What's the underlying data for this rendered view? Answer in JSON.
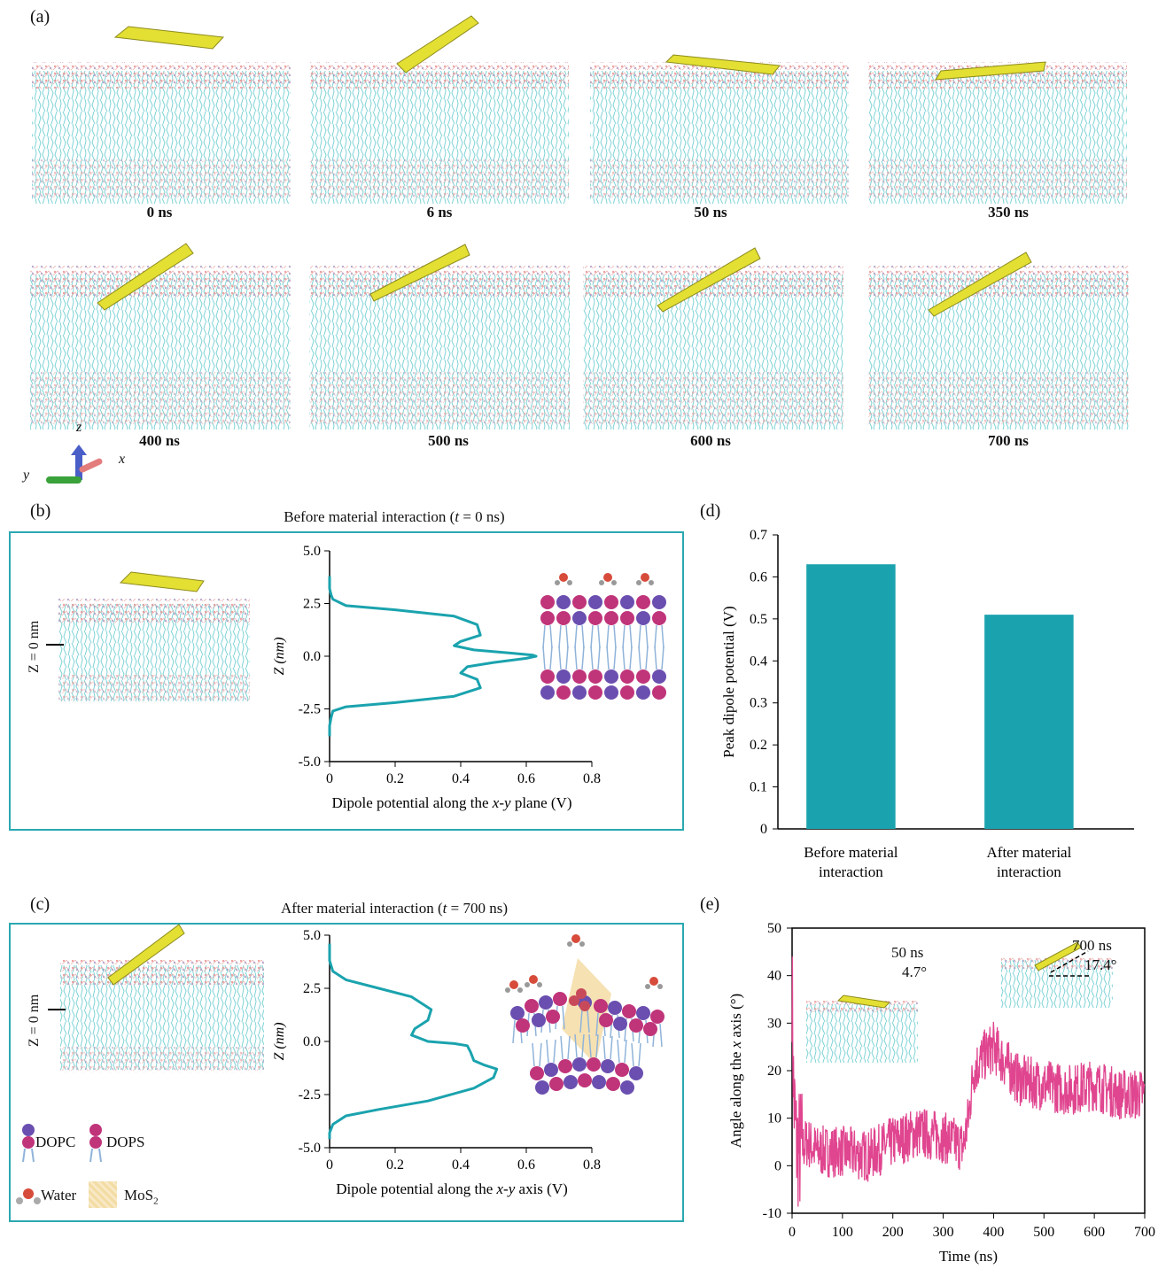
{
  "panels": {
    "a": {
      "label": "(a)",
      "snapshots": [
        "0 ns",
        "6 ns",
        "50 ns",
        "350 ns",
        "400 ns",
        "500 ns",
        "600 ns",
        "700 ns"
      ],
      "axes_triad": {
        "z": "z",
        "y": "y",
        "x": "x"
      }
    },
    "b": {
      "label": "(b)",
      "title_pre": "Before material interaction (",
      "title_t": "t",
      "title_post": " = 0 ns)",
      "z_marker": "Z = 0 nm"
    },
    "c": {
      "label": "(c)",
      "title_pre": "After material interaction (",
      "title_t": "t",
      "title_post": " = 700 ns)",
      "z_marker": "Z = 0 nm",
      "legend": {
        "dopc": "DOPC",
        "dops": "DOPS",
        "water": "Water",
        "mos2": "MoS",
        "mos2_sub": "2"
      }
    },
    "d": {
      "label": "(d)"
    },
    "e": {
      "label": "(e)",
      "inset1_time": "50 ns",
      "inset1_angle": "4.7°",
      "inset2_time": "700 ns",
      "inset2_angle": "17.4°"
    }
  },
  "colors": {
    "teal": "#1aa3ae",
    "pink": "#e0458f",
    "lipid": "#7fd3d6",
    "mos2": "#d9d72f",
    "dopc": "#6a4fb0",
    "dops": "#c0347a"
  },
  "chart_data": [
    {
      "id": "b",
      "type": "line",
      "xlabel_pre": "Dipole potential along the ",
      "xlabel_var": "x-y",
      "xlabel_post": " plane (V)",
      "ylabel": "Z (nm)",
      "xlim": [
        0,
        0.8
      ],
      "ylim": [
        -5.0,
        5.0
      ],
      "xticks": [
        "0",
        "0.2",
        "0.4",
        "0.6",
        "0.8"
      ],
      "yticks": [
        "5.0",
        "2.5",
        "0.0",
        "-2.5",
        "-5.0"
      ],
      "series": [
        {
          "x": [
            0,
            0,
            0.005,
            0.01,
            0.05,
            0.2,
            0.38,
            0.45,
            0.46,
            0.4,
            0.38,
            0.44,
            0.55,
            0.62,
            0.63,
            0.6,
            0.5,
            0.42,
            0.4,
            0.45,
            0.46,
            0.38,
            0.2,
            0.05,
            0.01,
            0.005,
            0,
            0
          ],
          "y": [
            3.8,
            3.2,
            2.9,
            2.7,
            2.4,
            2.2,
            1.9,
            1.5,
            1.0,
            0.7,
            0.5,
            0.3,
            0.15,
            0.05,
            0.0,
            -0.1,
            -0.3,
            -0.5,
            -0.8,
            -1.1,
            -1.5,
            -1.9,
            -2.2,
            -2.4,
            -2.6,
            -2.9,
            -3.3,
            -3.8
          ]
        }
      ]
    },
    {
      "id": "c",
      "type": "line",
      "xlabel_pre": "Dipole potential along the ",
      "xlabel_var": "x-y",
      "xlabel_post": " axis (V)",
      "ylabel": "Z (nm)",
      "xlim": [
        0,
        0.8
      ],
      "ylim": [
        -5.0,
        5.0
      ],
      "xticks": [
        "0",
        "0.2",
        "0.4",
        "0.6",
        "0.8"
      ],
      "yticks": [
        "5.0",
        "2.5",
        "0.0",
        "-2.5",
        "-5.0"
      ],
      "series": [
        {
          "x": [
            0,
            0,
            0.01,
            0.05,
            0.15,
            0.25,
            0.31,
            0.3,
            0.26,
            0.25,
            0.3,
            0.38,
            0.42,
            0.43,
            0.44,
            0.47,
            0.51,
            0.5,
            0.44,
            0.3,
            0.15,
            0.05,
            0.01,
            0,
            0
          ],
          "y": [
            4.6,
            3.8,
            3.3,
            2.9,
            2.5,
            2.1,
            1.5,
            1.0,
            0.6,
            0.3,
            0.0,
            -0.1,
            -0.2,
            -0.5,
            -0.9,
            -1.1,
            -1.3,
            -1.7,
            -2.2,
            -2.8,
            -3.2,
            -3.5,
            -3.9,
            -4.3,
            -4.6
          ]
        }
      ]
    },
    {
      "id": "d",
      "type": "bar",
      "categories": [
        [
          "Before material",
          "interaction"
        ],
        [
          "After material",
          "interaction"
        ]
      ],
      "values": [
        0.63,
        0.51
      ],
      "ylabel": "Peak dipole potential (V)",
      "ylim": [
        0,
        0.7
      ],
      "yticks": [
        "0",
        "0.1",
        "0.2",
        "0.3",
        "0.4",
        "0.5",
        "0.6",
        "0.7"
      ]
    },
    {
      "id": "e",
      "type": "line",
      "xlabel": "Time (ns)",
      "ylabel_pre": "Angle along the ",
      "ylabel_var": "x",
      "ylabel_post": " axis (°)",
      "xlim": [
        0,
        700
      ],
      "ylim": [
        -10,
        50
      ],
      "xticks": [
        "0",
        "100",
        "200",
        "300",
        "400",
        "500",
        "600",
        "700"
      ],
      "yticks": [
        "50",
        "40",
        "30",
        "20",
        "10",
        "0",
        "-10"
      ],
      "trend": {
        "t": [
          0,
          3,
          8,
          15,
          30,
          50,
          100,
          150,
          200,
          250,
          300,
          340,
          350,
          360,
          380,
          400,
          420,
          450,
          500,
          550,
          600,
          650,
          700
        ],
        "v": [
          40,
          15,
          5,
          3,
          5,
          3,
          3,
          2,
          5,
          7,
          6,
          4,
          10,
          20,
          23,
          25,
          22,
          18,
          17,
          16,
          17,
          15,
          15
        ]
      }
    }
  ]
}
